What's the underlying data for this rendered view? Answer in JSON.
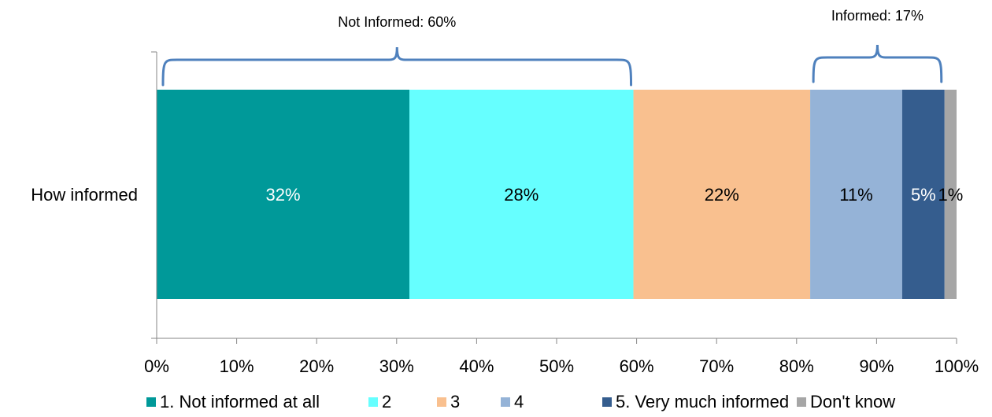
{
  "chart_data": {
    "type": "bar",
    "orientation": "horizontal",
    "stacked": true,
    "categories": [
      "How informed"
    ],
    "series": [
      {
        "name": "1. Not informed at all",
        "values": [
          31.6
        ],
        "label": "32%",
        "color": "#009999",
        "label_color": "#ffffff"
      },
      {
        "name": "2",
        "values": [
          28.0
        ],
        "label": "28%",
        "color": "#66ffff",
        "label_color": "#000000"
      },
      {
        "name": "3",
        "values": [
          22.1
        ],
        "label": "22%",
        "color": "#f9c08f",
        "label_color": "#000000"
      },
      {
        "name": "4",
        "values": [
          11.5
        ],
        "label": "11%",
        "color": "#95b3d7",
        "label_color": "#000000"
      },
      {
        "name": "5. Very much informed",
        "values": [
          5.3
        ],
        "label": "5%",
        "color": "#355d8e",
        "label_color": "#ffffff"
      },
      {
        "name": "Don't know",
        "values": [
          1.5
        ],
        "label": "1%",
        "color": "#a6a6a6",
        "label_color": "#000000"
      }
    ],
    "xlim": [
      0,
      100
    ],
    "x_ticks": [
      "0%",
      "10%",
      "20%",
      "30%",
      "40%",
      "50%",
      "60%",
      "70%",
      "80%",
      "90%",
      "100%"
    ],
    "grid": false,
    "legend_position": "bottom",
    "annotations": [
      {
        "text": "Not Informed: 60%",
        "from": 0,
        "to": 59.6,
        "color": "#4f81bd"
      },
      {
        "text": "Informed: 17%",
        "from": 82,
        "to": 98.4,
        "color": "#4f81bd"
      }
    ]
  }
}
